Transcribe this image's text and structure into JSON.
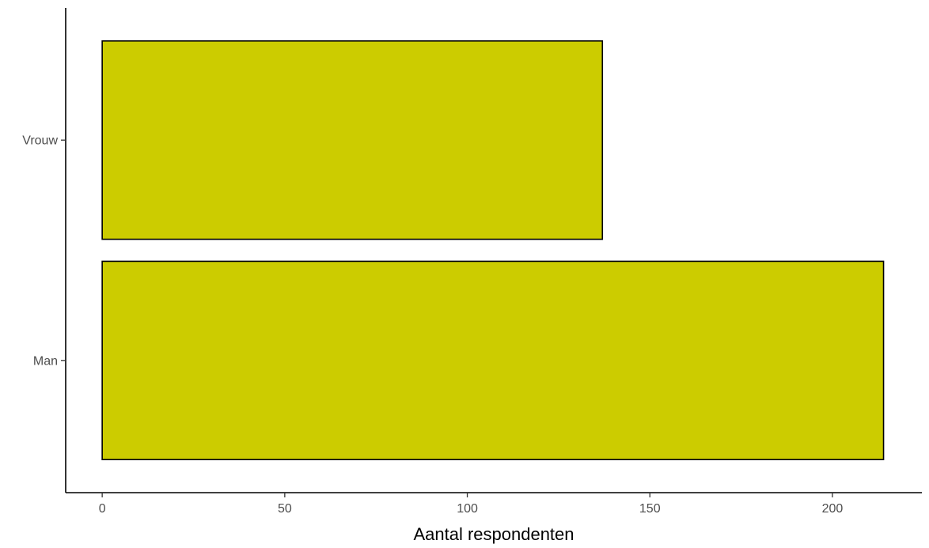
{
  "chart_data": {
    "type": "bar",
    "orientation": "horizontal",
    "categories": [
      "Man",
      "Vrouw"
    ],
    "values": [
      214,
      137
    ],
    "title": "",
    "xlabel": "Aantal respondenten",
    "ylabel": "",
    "xlim": [
      -10,
      224.5
    ],
    "xticks": [
      0,
      50,
      100,
      150,
      200
    ],
    "grid": false,
    "bar_color": "#CCCC00",
    "bar_border_color": "#000000"
  }
}
